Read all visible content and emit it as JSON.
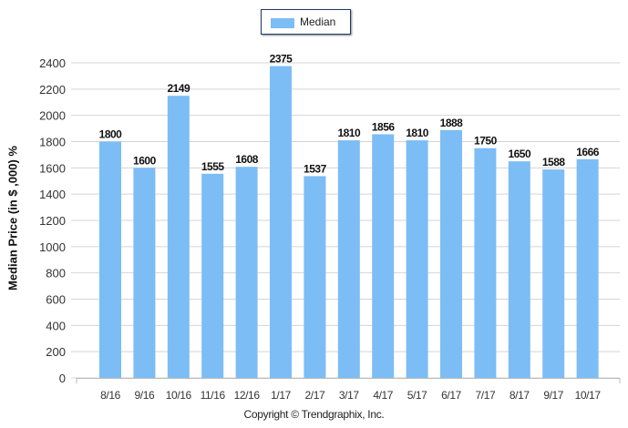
{
  "chart_data": {
    "type": "bar",
    "categories": [
      "8/16",
      "9/16",
      "10/16",
      "11/16",
      "12/16",
      "1/17",
      "2/17",
      "3/17",
      "4/17",
      "5/17",
      "6/17",
      "7/17",
      "8/17",
      "9/17",
      "10/17"
    ],
    "series": [
      {
        "name": "Median",
        "values": [
          1800,
          1600,
          2149,
          1555,
          1608,
          2375,
          1537,
          1810,
          1856,
          1810,
          1888,
          1750,
          1650,
          1588,
          1666
        ],
        "color": "#7cbdf5"
      }
    ],
    "title": "",
    "xlabel": "",
    "ylabel": "Median Price (in $ ,000) %",
    "ylim": [
      0,
      2400
    ],
    "yticks": [
      0,
      200,
      400,
      600,
      800,
      1000,
      1200,
      1400,
      1600,
      1800,
      2000,
      2200,
      2400
    ],
    "grid": true,
    "legend": "top-center"
  },
  "legend_label": "Median",
  "copyright": "Copyright © Trendgraphix, Inc."
}
